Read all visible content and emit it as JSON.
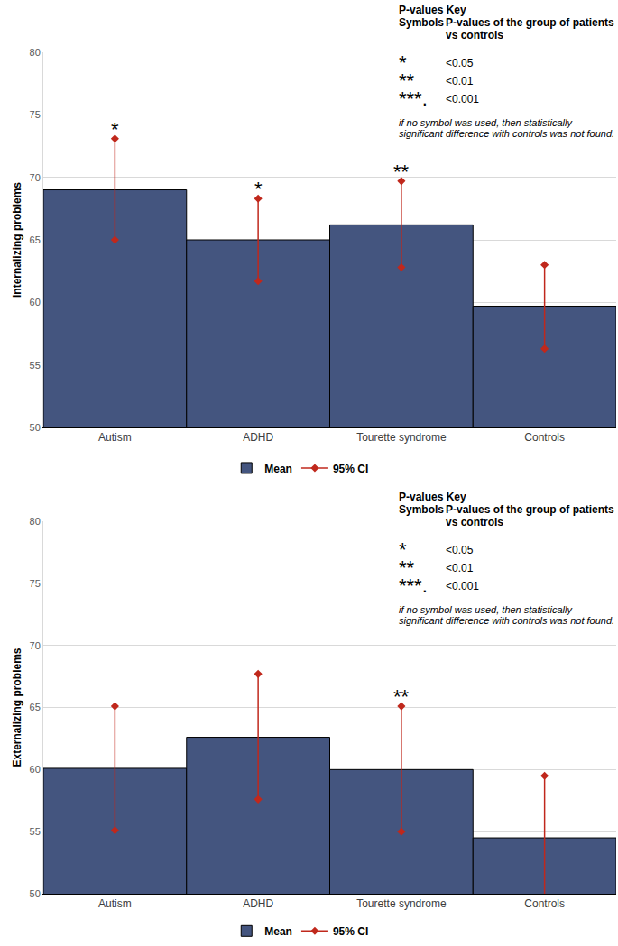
{
  "chart_data": [
    {
      "type": "bar",
      "y_label": "Internalizing problems",
      "categories": [
        "Autism",
        "ADHD",
        "Tourette syndrome",
        "Controls"
      ],
      "series": [
        {
          "name": "Mean",
          "type": "bar",
          "color": "#44557f",
          "values": [
            69.0,
            65.0,
            66.2,
            59.7
          ]
        },
        {
          "name": "95% CI",
          "type": "range",
          "color": "#c0281c",
          "marker": "diamond",
          "lower": [
            65.0,
            61.7,
            62.8,
            56.3
          ],
          "upper": [
            73.1,
            68.3,
            69.7,
            63.0
          ]
        }
      ],
      "ylim": [
        50,
        80
      ],
      "yticks": [
        50,
        55,
        60,
        65,
        70,
        75,
        80
      ],
      "grid": true,
      "legend": "bottom",
      "annotations": [
        {
          "category": "Autism",
          "text": "*"
        },
        {
          "category": "ADHD",
          "text": "*"
        },
        {
          "category": "Tourette syndrome",
          "text": "**"
        }
      ],
      "key": {
        "title": "P-values Key",
        "header": [
          "Symbols",
          "P-values of the group of patients vs controls"
        ],
        "rows": [
          [
            "*",
            "<0.05"
          ],
          [
            "**",
            "<0.01"
          ],
          [
            "***.",
            "<0.001"
          ]
        ],
        "note": "if no symbol was used, then statistically significant difference with controls was not found."
      }
    },
    {
      "type": "bar",
      "y_label": "Externalizing problems",
      "categories": [
        "Autism",
        "ADHD",
        "Tourette syndrome",
        "Controls"
      ],
      "series": [
        {
          "name": "Mean",
          "type": "bar",
          "color": "#44557f",
          "values": [
            60.1,
            62.6,
            60.0,
            54.5
          ]
        },
        {
          "name": "95% CI",
          "type": "range",
          "color": "#c0281c",
          "marker": "diamond",
          "lower": [
            55.1,
            57.6,
            55.0,
            49.5
          ],
          "upper": [
            65.1,
            67.7,
            65.1,
            59.5
          ]
        }
      ],
      "ylim": [
        50,
        80
      ],
      "yticks": [
        50,
        55,
        60,
        65,
        70,
        75,
        80
      ],
      "grid": true,
      "legend": "bottom",
      "annotations": [
        {
          "category": "Tourette syndrome",
          "text": "**"
        }
      ],
      "key": {
        "title": "P-values Key",
        "header": [
          "Symbols",
          "P-values of the group of patients vs controls"
        ],
        "rows": [
          [
            "*",
            "<0.05"
          ],
          [
            "**",
            "<0.01"
          ],
          [
            "***.",
            "<0.001"
          ]
        ],
        "note": "if no symbol was used, then statistically significant difference with controls was not found."
      }
    }
  ]
}
